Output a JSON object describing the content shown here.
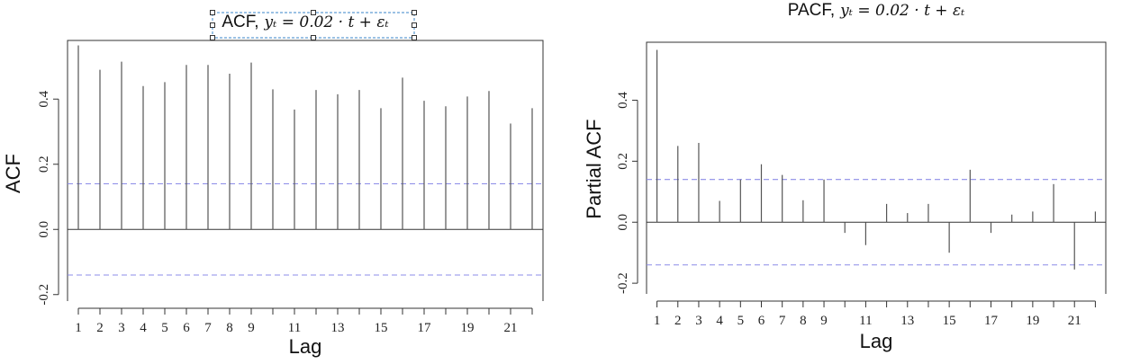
{
  "chart_data": [
    {
      "type": "bar",
      "title_prefix": "ACF,",
      "title_math": "yₜ = 0.02 · t + εₜ",
      "xlabel": "Lag",
      "ylabel": "ACF",
      "ylim": [
        -0.22,
        0.58
      ],
      "xlim": [
        0.5,
        22.5
      ],
      "yticks": [
        "-0.2",
        "0.0",
        "0.2",
        "0.4"
      ],
      "xticks": [
        "1",
        "2",
        "3",
        "4",
        "5",
        "6",
        "7",
        "8",
        "9",
        "11",
        "13",
        "15",
        "17",
        "19",
        "21"
      ],
      "conf_band": [
        0.14,
        -0.14
      ],
      "selected_title": true,
      "x": [
        1,
        2,
        3,
        4,
        5,
        6,
        7,
        8,
        9,
        10,
        11,
        12,
        13,
        14,
        15,
        16,
        17,
        18,
        19,
        20,
        21,
        22
      ],
      "values": [
        0.565,
        0.49,
        0.515,
        0.44,
        0.452,
        0.505,
        0.505,
        0.478,
        0.512,
        0.43,
        0.368,
        0.428,
        0.415,
        0.428,
        0.372,
        0.466,
        0.395,
        0.378,
        0.408,
        0.425,
        0.325,
        0.372
      ]
    },
    {
      "type": "bar",
      "title_prefix": "PACF,",
      "title_math": "yₜ = 0.02 · t + εₜ",
      "xlabel": "Lag",
      "ylabel": "Partial ACF",
      "ylim": [
        -0.235,
        0.59
      ],
      "xlim": [
        0.5,
        22.5
      ],
      "yticks": [
        "-0.2",
        "0.0",
        "0.2",
        "0.4"
      ],
      "xticks": [
        "1",
        "2",
        "3",
        "4",
        "5",
        "6",
        "7",
        "8",
        "9",
        "11",
        "13",
        "15",
        "17",
        "19",
        "21"
      ],
      "conf_band": [
        0.14,
        -0.14
      ],
      "selected_title": false,
      "x": [
        1,
        2,
        3,
        4,
        5,
        6,
        7,
        8,
        9,
        10,
        11,
        12,
        13,
        14,
        15,
        16,
        17,
        18,
        19,
        20,
        21,
        22
      ],
      "values": [
        0.565,
        0.25,
        0.26,
        0.07,
        0.14,
        0.19,
        0.155,
        0.072,
        0.14,
        -0.035,
        -0.075,
        0.06,
        0.03,
        0.06,
        -0.1,
        0.172,
        -0.035,
        0.025,
        0.035,
        0.125,
        -0.155,
        0.035
      ]
    }
  ],
  "colors": {
    "bar": "#555555",
    "axis": "#333333",
    "confidence": "#8c8ce8",
    "selection": "#3a86c8"
  }
}
